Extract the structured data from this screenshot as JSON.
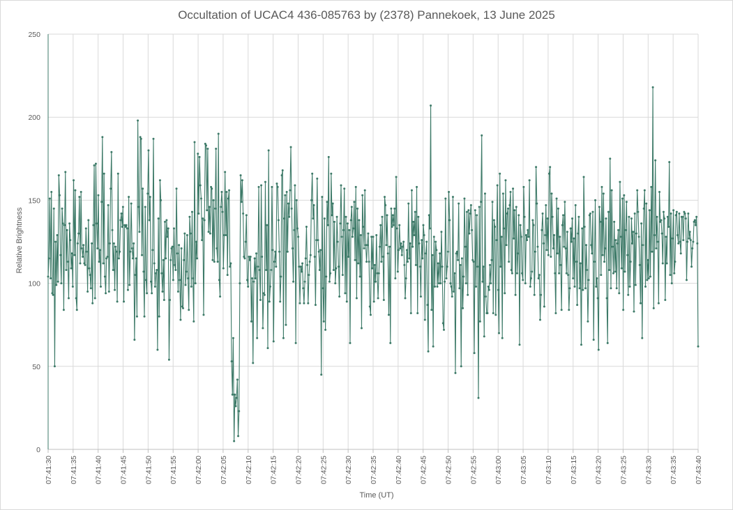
{
  "chart_data": {
    "type": "line",
    "title": "Occultation of UCAC4 436-085763 by (2378) Pannekoek, 13 June 2025",
    "xlabel": "Time (UT)",
    "ylabel": "Relative Brightness",
    "ylim": [
      0,
      250
    ],
    "yticks": [
      "0",
      "50",
      "100",
      "150",
      "200",
      "250"
    ],
    "xlim_seconds_span": 130,
    "xtick_labels": [
      "07:41:30",
      "07:41:35",
      "07:41:40",
      "07:41:45",
      "07:41:50",
      "07:41:55",
      "07:42:00",
      "07:42:05",
      "07:42:10",
      "07:42:15",
      "07:42:20",
      "07:42:25",
      "07:42:30",
      "07:42:35",
      "07:42:40",
      "07:42:45",
      "07:42:50",
      "07:42:55",
      "07:43:00",
      "07:43:05",
      "07:43:10",
      "07:43:15",
      "07:43:20",
      "07:43:25",
      "07:43:30",
      "07:43:35",
      "07:43:40"
    ],
    "grid": "vertical and horizontal",
    "line_color": "#3d7a68",
    "series": [
      {
        "values": [
          104,
          115,
          151,
          103,
          155,
          94,
          93,
          145,
          50,
          125,
          99,
          129,
          101,
          165,
          153,
          117,
          100,
          145,
          136,
          84,
          135,
          167,
          108,
          132,
          113,
          91,
          136,
          126,
          109,
          118,
          98,
          162,
          117,
          156,
          91,
          84,
          124,
          130,
          152,
          112,
          155,
          121,
          116,
          123,
          112,
          111,
          133,
          119,
          95,
          138,
          109,
          105,
          97,
          124,
          88,
          135,
          171,
          91,
          172,
          136,
          121,
          153,
          113,
          120,
          98,
          149,
          188,
          112,
          166,
          104,
          94,
          115,
          116,
          147,
          95,
          124,
          157,
          179,
          132,
          108,
          124,
          96,
          122,
          119,
          89,
          166,
          115,
          119,
          138,
          142,
          134,
          146,
          89,
          135,
          134,
          135,
          133,
          96,
          152,
          99,
          119,
          148,
          121,
          115,
          124,
          66,
          105,
          115,
          80,
          198,
          146,
          131,
          188,
          187,
          117,
          157,
          107,
          80,
          146,
          102,
          94,
          154,
          180,
          138,
          152,
          101,
          94,
          120,
          187,
          112,
          98,
          106,
          108,
          60,
          139,
          80,
          162,
          150,
          106,
          95,
          114,
          90,
          137,
          115,
          138,
          128,
          133,
          54,
          90,
          114,
          121,
          122,
          102,
          133,
          111,
          108,
          157,
          118,
          95,
          123,
          102,
          78,
          121,
          86,
          85,
          114,
          130,
          99,
          107,
          129,
          103,
          84,
          140,
          130,
          98,
          143,
          103,
          77,
          185,
          100,
          125,
          115,
          178,
          142,
          176,
          159,
          151,
          126,
          139,
          81,
          138,
          184,
          183,
          144,
          181,
          131,
          146,
          130,
          158,
          157,
          114,
          150,
          113,
          145,
          181,
          121,
          113,
          190,
          102,
          92,
          146,
          155,
          143,
          109,
          129,
          167,
          129,
          155,
          105,
          151,
          156,
          110,
          112,
          53,
          33,
          67,
          5,
          33,
          26,
          31,
          42,
          8,
          23,
          100,
          165,
          149,
          162,
          142,
          116,
          115,
          125,
          141,
          102,
          98,
          116,
          114,
          116,
          77,
          103,
          52,
          101,
          115,
          103,
          118,
          67,
          110,
          158,
          108,
          90,
          159,
          116,
          73,
          94,
          93,
          161,
          108,
          135,
          61,
          180,
          89,
          98,
          108,
          158,
          120,
          65,
          113,
          119,
          110,
          160,
          158,
          138,
          119,
          89,
          104,
          165,
          168,
          67,
          139,
          153,
          75,
          155,
          119,
          148,
          140,
          156,
          182,
          145,
          121,
          101,
          132,
          159,
          64,
          150,
          133,
          128,
          110,
          88,
          110,
          107,
          112,
          97,
          88,
          101,
          115,
          134,
          111,
          88,
          105,
          113,
          117,
          150,
          166,
          139,
          147,
          116,
          87,
          126,
          163,
          126,
          119,
          108,
          120,
          45,
          152,
          97,
          77,
          139,
          72,
          104,
          149,
          135,
          176,
          101,
          106,
          166,
          141,
          148,
          108,
          137,
          100,
          109,
          140,
          125,
          110,
          92,
          136,
          159,
          128,
          105,
          132,
          157,
          94,
          140,
          89,
          136,
          116,
          132,
          64,
          138,
          146,
          128,
          133,
          149,
          114,
          158,
          91,
          145,
          112,
          138,
          104,
          129,
          73,
          153,
          134,
          121,
          156,
          123,
          113,
          123,
          130,
          113,
          86,
          81,
          128,
          109,
          128,
          89,
          111,
          101,
          129,
          106,
          91,
          106,
          122,
          135,
          113,
          140,
          116,
          90,
          152,
          147,
          123,
          141,
          118,
          81,
          122,
          64,
          145,
          134,
          141,
          135,
          145,
          103,
          164,
          133,
          107,
          120,
          135,
          121,
          124,
          117,
          122,
          125,
          111,
          91,
          103,
          120,
          113,
          148,
          115,
          124,
          82,
          156,
          122,
          137,
          129,
          143,
          111,
          158,
          82,
          140,
          124,
          110,
          92,
          126,
          115,
          135,
          129,
          78,
          118,
          125,
          87,
          59,
          141,
          133,
          207,
          84,
          117,
          62,
          128,
          98,
          125,
          120,
          98,
          112,
          100,
          118,
          100,
          131,
          110,
          76,
          72,
          101,
          151,
          103,
          110,
          119,
          155,
          138,
          100,
          98,
          92,
          152,
          95,
          106,
          46,
          118,
          119,
          114,
          148,
          97,
          111,
          50,
          115,
          85,
          104,
          151,
          122,
          100,
          143,
          93,
          144,
          130,
          142,
          147,
          132,
          114,
          113,
          58,
          144,
          98,
          141,
          110,
          31,
          146,
          77,
          149,
          189,
          101,
          110,
          68,
          154,
          92,
          82,
          82,
          98,
          96,
          111,
          100,
          114,
          149,
          82,
          138,
          134,
          81,
          126,
          159,
          96,
          70,
          166,
          110,
          128,
          67,
          154,
          133,
          94,
          162,
          123,
          142,
          145,
          113,
          147,
          155,
          108,
          106,
          157,
          127,
          144,
          93,
          146,
          106,
          118,
          141,
          63,
          135,
          128,
          106,
          102,
          158,
          140,
          100,
          129,
          126,
          132,
          128,
          162,
          98,
          103,
          107,
          138,
          135,
          93,
          119,
          170,
          148,
          122,
          103,
          105,
          78,
          93,
          132,
          142,
          124,
          86,
          129,
          147,
          120,
          139,
          117,
          166,
          170,
          116,
          154,
          140,
          121,
          129,
          106,
          82,
          151,
          118,
          145,
          106,
          128,
          111,
          84,
          135,
          141,
          122,
          149,
          121,
          106,
          131,
          105,
          84,
          97,
          133,
          125,
          139,
          103,
          127,
          98,
          147,
          113,
          87,
          130,
          140,
          97,
          112,
          63,
          133,
          96,
          164,
          134,
          97,
          123,
          108,
          77,
          102,
          141,
          142,
          123,
          118,
          143,
          66,
          113,
          150,
          98,
          103,
          91,
          60,
          146,
          137,
          105,
          158,
          117,
          154,
          113,
          121,
          139,
          91,
          64,
          143,
          108,
          175,
          97,
          156,
          122,
          106,
          137,
          107,
          126,
          97,
          124,
          132,
          94,
          161,
          128,
          109,
          151,
          84,
          153,
          107,
          132,
          149,
          117,
          93,
          140,
          98,
          113,
          139,
          124,
          131,
          83,
          142,
          99,
          130,
          156,
          143,
          128,
          111,
          88,
          136,
          67,
          123,
          145,
          156,
          98,
          148,
          102,
          114,
          103,
          144,
          104,
          158,
          119,
          218,
          85,
          129,
          174,
          121,
          140,
          125,
          88,
          155,
          137,
          138,
          130,
          112,
          143,
          139,
          90,
          128,
          112,
          140,
          134,
          173,
          105,
          142,
          100,
          127,
          144,
          106,
          113,
          141,
          143,
          129,
          124,
          142,
          125,
          118,
          140,
          140,
          126,
          143,
          142,
          139,
          102,
          125,
          142,
          127,
          131,
          126,
          110,
          121,
          125,
          137,
          138,
          135,
          140,
          124,
          62
        ]
      }
    ]
  }
}
